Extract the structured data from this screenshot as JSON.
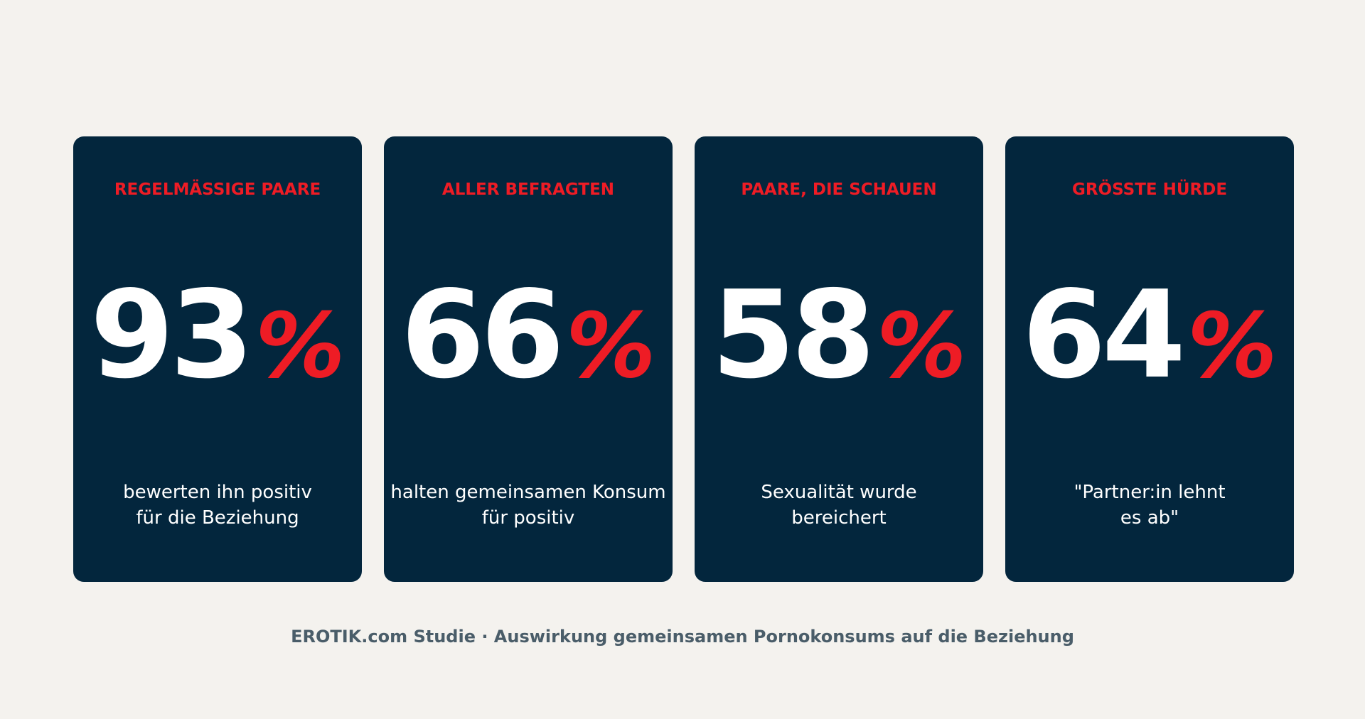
{
  "colors": {
    "background": "#f4f2ee",
    "card": "#03263d",
    "accent": "#ee1c25",
    "text_light": "#ffffff",
    "footer_text": "#4a5d69"
  },
  "cards": [
    {
      "label": "REGELMÄSSIGE PAARE",
      "number": "93",
      "percent": "%",
      "desc_line1": "bewerten ihn positiv",
      "desc_line2": "für die Beziehung"
    },
    {
      "label": "ALLER BEFRAGTEN",
      "number": "66",
      "percent": "%",
      "desc_line1": "halten gemeinsamen Konsum",
      "desc_line2": "für positiv"
    },
    {
      "label": "PAARE, DIE SCHAUEN",
      "number": "58",
      "percent": "%",
      "desc_line1": "Sexualität wurde",
      "desc_line2": "bereichert"
    },
    {
      "label": "GRÖSSTE HÜRDE",
      "number": "64",
      "percent": "%",
      "desc_line1": "\"Partner:in lehnt",
      "desc_line2": "es ab\""
    }
  ],
  "footer": {
    "text": "EROTIK.com Studie · Auswirkung gemeinsamen Pornokonsums auf die Beziehung"
  }
}
